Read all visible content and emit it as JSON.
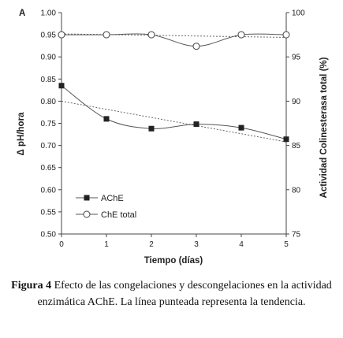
{
  "chart_data": {
    "type": "line",
    "panel_label": "A",
    "x": [
      0,
      1,
      2,
      3,
      4,
      5
    ],
    "xlabel": "Tiempo (días)",
    "xlim": [
      0,
      5
    ],
    "x_ticks": [
      "0",
      "1",
      "2",
      "3",
      "4",
      "5"
    ],
    "ylabel_left": "Δ pH/hora",
    "ylim_left": [
      0.5,
      1.0
    ],
    "y_ticks_left": [
      "0.50",
      "0.55",
      "0.60",
      "0.65",
      "0.70",
      "0.75",
      "0.80",
      "0.85",
      "0.90",
      "0.95",
      "1.00"
    ],
    "ylabel_right": "Actividad Colinesterasa total (%)",
    "ylim_right": [
      75,
      100
    ],
    "y_ticks_right": [
      "75",
      "80",
      "85",
      "90",
      "95",
      "100"
    ],
    "grid": false,
    "legend_position": "bottom-left",
    "series": [
      {
        "name": "AChE",
        "axis": "left",
        "marker": "filled-square",
        "values": [
          0.835,
          0.76,
          0.738,
          0.748,
          0.74,
          0.714
        ],
        "trend": [
          0.8,
          0.708
        ]
      },
      {
        "name": "ChE total",
        "axis": "right",
        "marker": "open-circle",
        "values": [
          97.5,
          97.5,
          97.5,
          96.2,
          97.5,
          97.5
        ],
        "trend": [
          97.6,
          97.2
        ]
      }
    ]
  },
  "caption": {
    "label": "Figura 4",
    "text": " Efecto de las congelaciones y descongelaciones en la actividad enzimática AChE. La línea punteada representa la tendencia."
  }
}
